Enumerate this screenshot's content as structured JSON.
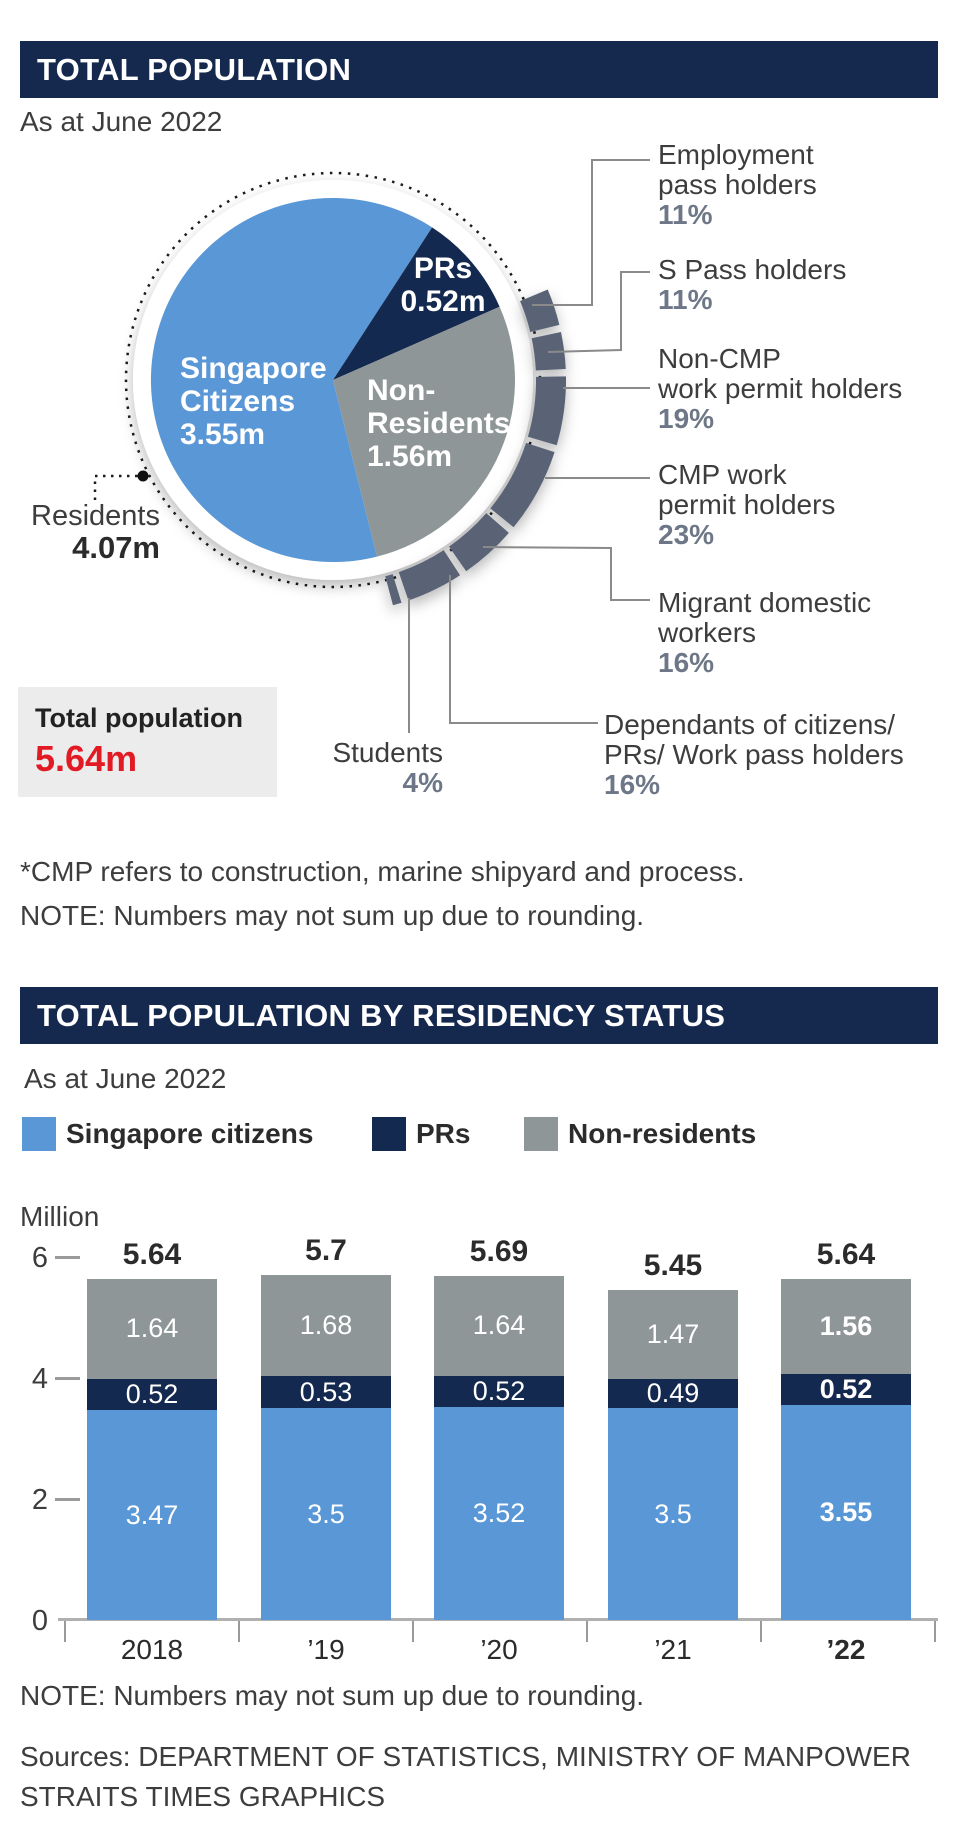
{
  "colors": {
    "header_bg": "#15294e",
    "citizens": "#5997d6",
    "prs": "#14294f",
    "non_residents": "#8f9697",
    "ring": "#5a6476",
    "pct_text": "#6d7787",
    "total_red": "#e11a23",
    "box_bg": "#ececec"
  },
  "section1": {
    "header": "TOTAL POPULATION",
    "date_label": "As at June 2022",
    "pie": {
      "slices": [
        {
          "name": "Singapore Citizens",
          "label_lines": [
            "Singapore",
            "Citizens",
            "3.55m"
          ],
          "value": 3.55
        },
        {
          "name": "PRs",
          "label_lines": [
            "PRs",
            "0.52m"
          ],
          "value": 0.52
        },
        {
          "name": "Non-Residents",
          "label_lines": [
            "Non-",
            "Residents",
            "1.56m"
          ],
          "value": 1.56
        }
      ],
      "residents": {
        "label": "Residents",
        "value": "4.07m"
      },
      "ring_segments": [
        {
          "label_lines": [
            "Employment",
            "pass holders"
          ],
          "pct": "11%",
          "pct_value": 11
        },
        {
          "label_lines": [
            "S Pass holders"
          ],
          "pct": "11%",
          "pct_value": 11
        },
        {
          "label_lines": [
            "Non-CMP",
            "work permit holders"
          ],
          "pct": "19%",
          "pct_value": 19
        },
        {
          "label_lines": [
            "CMP work",
            "permit holders"
          ],
          "pct": "23%",
          "pct_value": 23
        },
        {
          "label_lines": [
            "Migrant domestic",
            "workers"
          ],
          "pct": "16%",
          "pct_value": 16
        },
        {
          "label_lines": [
            "Dependants of citizens/",
            "PRs/ Work pass holders"
          ],
          "pct": "16%",
          "pct_value": 16
        },
        {
          "label_lines": [
            "Students"
          ],
          "pct": "4%",
          "pct_value": 4
        }
      ],
      "total_box": {
        "label": "Total population",
        "value": "5.64m"
      }
    },
    "notes": [
      "*CMP refers to construction, marine shipyard and process.",
      "NOTE: Numbers may not sum up due to rounding."
    ]
  },
  "section2": {
    "header": "TOTAL POPULATION BY RESIDENCY STATUS",
    "date_label": "As at June 2022",
    "legend": [
      {
        "label": "Singapore citizens",
        "color": "#5997d6"
      },
      {
        "label": "PRs",
        "color": "#14294f"
      },
      {
        "label": "Non-residents",
        "color": "#8f9697"
      }
    ],
    "chart_data": {
      "type": "stacked-bar",
      "title": "TOTAL POPULATION BY RESIDENCY STATUS",
      "subtitle": "As at June 2022",
      "categories": [
        "2018",
        "’19",
        "’20",
        "’21",
        "’22"
      ],
      "series": [
        {
          "name": "Singapore citizens",
          "color": "#5997d6",
          "values": [
            3.47,
            3.5,
            3.52,
            3.5,
            3.55
          ]
        },
        {
          "name": "PRs",
          "color": "#14294f",
          "values": [
            0.52,
            0.53,
            0.52,
            0.49,
            0.52
          ]
        },
        {
          "name": "Non-residents",
          "color": "#8f9697",
          "values": [
            1.64,
            1.68,
            1.64,
            1.47,
            1.56
          ]
        }
      ],
      "totals": [
        5.64,
        5.7,
        5.69,
        5.45,
        5.64
      ],
      "ylabel": "Million",
      "yticks": [
        0,
        2,
        4,
        6
      ],
      "ylim": [
        0,
        6.2
      ],
      "grid": false,
      "legend_position": "top",
      "highlight_last_category": true
    }
  },
  "footer": {
    "note": "NOTE: Numbers may not sum up due to rounding.",
    "sources_line1": "Sources: DEPARTMENT OF STATISTICS, MINISTRY OF MANPOWER",
    "sources_line2": "STRAITS TIMES GRAPHICS"
  }
}
